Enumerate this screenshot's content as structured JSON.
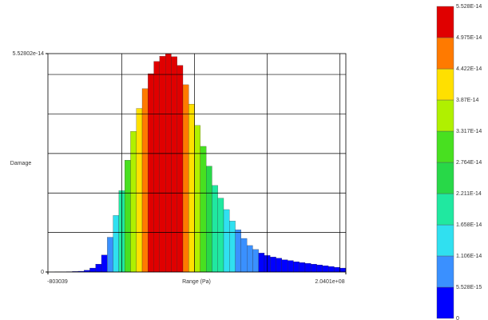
{
  "chart_data": {
    "type": "histogram",
    "xlabel": "Range (Pa)",
    "ylabel": "Damage",
    "bins": [
      0,
      4000000,
      8000000,
      12000000,
      16000000,
      20000000,
      24000000,
      28000000,
      32000000,
      36000000,
      40000000,
      44000000,
      48000000,
      52000000,
      56000000,
      60000000,
      64000000,
      68000000,
      72000000,
      76000000,
      80000000,
      84000000,
      88000000,
      92000000,
      96000000,
      100000000,
      104000000,
      108000000,
      112000000,
      116000000,
      120000000,
      124000000,
      128000000,
      132000000,
      136000000,
      140000000,
      144000000,
      148000000,
      152000000,
      156000000,
      160000000,
      164000000,
      168000000,
      172000000,
      176000000,
      180000000,
      184000000,
      188000000,
      192000000,
      196000000,
      200000000,
      204000000
    ],
    "values": [
      1e-17,
      4e-17,
      7e-17,
      9e-17,
      1.5e-16,
      2e-16,
      4.5e-16,
      1e-15,
      2e-15,
      4.3e-15,
      8.8e-15,
      1.43e-14,
      2.06e-14,
      2.83e-14,
      3.56e-14,
      4.14e-14,
      4.64e-14,
      5.02e-14,
      5.33e-14,
      5.46e-14,
      5.52e-14,
      5.45e-14,
      5.23e-14,
      4.74e-14,
      4.25e-14,
      3.71e-14,
      3.18e-14,
      2.68e-14,
      2.19e-14,
      1.87e-14,
      1.58e-14,
      1.29e-14,
      1.07e-14,
      8.5e-15,
      6.7e-15,
      5.7e-15,
      4.8e-15,
      4.2e-15,
      3.8e-15,
      3.5e-15,
      3.1e-15,
      2.9e-15,
      2.6e-15,
      2.4e-15,
      2.2e-15,
      2e-15,
      1.8e-15,
      1.6e-15,
      1.4e-15,
      1.2e-15,
      1e-15
    ],
    "xlim": [
      -803039,
      204010000
    ],
    "xticks": [
      -803039,
      {
        "value": 204010000,
        "label": "2.0401e+08"
      }
    ],
    "ylim": [
      0,
      5.52802e-14
    ],
    "yticks": [
      0,
      5.52802e-14
    ],
    "xgrid": [
      50000000,
      100000000,
      150000000,
      200000000
    ],
    "ygrid": [
      1e-14,
      2e-14,
      3e-14,
      4e-14,
      5e-14
    ],
    "colorbar": {
      "ticks": [
        0,
        {
          "value": 5.528e-15,
          "label": "5.528E-15"
        },
        {
          "value": 1.106e-14,
          "label": "1.106E-14"
        },
        {
          "value": 1.658e-14,
          "label": "1.658E-14"
        },
        {
          "value": 2.211e-14,
          "label": "2.211E-14"
        },
        {
          "value": 2.764e-14,
          "label": "2.764E-14"
        },
        {
          "value": 3.317e-14,
          "label": "3.317E-14"
        },
        {
          "value": 3.87e-14,
          "label": "3.87E-14"
        },
        {
          "value": 4.422e-14,
          "label": "4.422E-14"
        },
        {
          "value": 4.975e-14,
          "label": "4.975E-14"
        },
        {
          "value": 5.528e-14,
          "label": "5.528E-14"
        }
      ],
      "colors": [
        "#0000ff",
        "#3a90ff",
        "#30e0f0",
        "#20e8a0",
        "#28d848",
        "#48e020",
        "#b0f000",
        "#ffe000",
        "#ff7a00",
        "#e00000"
      ]
    }
  }
}
